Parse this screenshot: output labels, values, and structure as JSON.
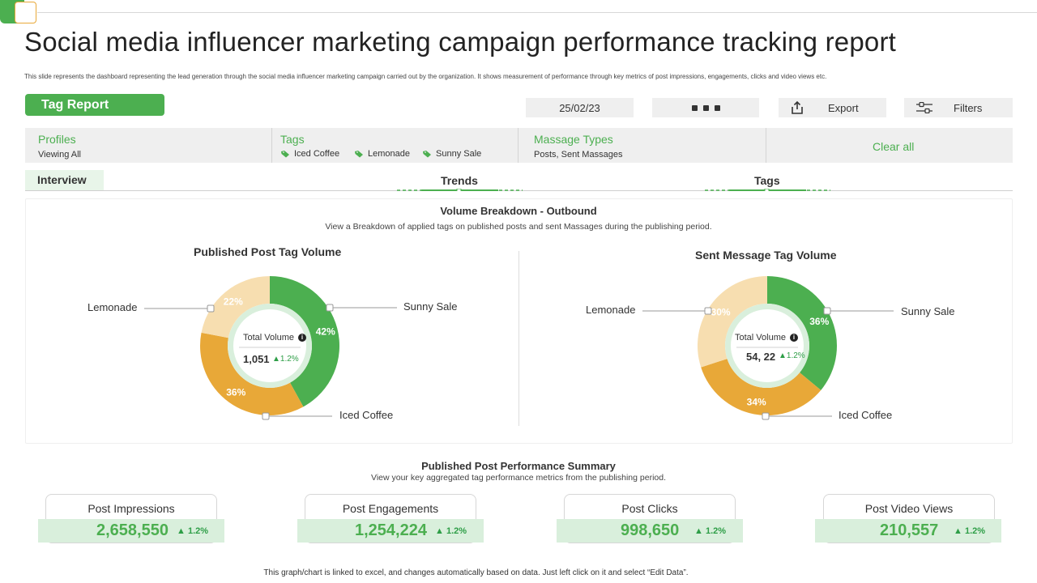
{
  "title": "Social media influencer marketing campaign performance tracking report",
  "subtitle": "This slide represents the dashboard representing the lead generation through the social media influencer marketing campaign carried out by the organization.  It shows measurement of performance through key metrics of post impressions, engagements, clicks and video views etc.",
  "toolbar": {
    "tag_report_label": "Tag Report",
    "date": "25/02/23",
    "export_label": "Export",
    "filters_label": "Filters"
  },
  "filters": {
    "profiles_label": "Profiles",
    "profiles_value": "Viewing All",
    "tags_label": "Tags",
    "tags": [
      "Iced Coffee",
      "Lemonade",
      "Sunny Sale"
    ],
    "message_types_label": "Massage Types",
    "message_types_value": "Posts, Sent Massages",
    "clear_all_label": "Clear all"
  },
  "tabs": [
    "Interview",
    "Trends",
    "Tags"
  ],
  "volume_breakdown": {
    "title": "Volume Breakdown - Outbound",
    "subtitle": "View a Breakdown of applied tags on published posts and sent Massages during the publishing period."
  },
  "colors": {
    "green": "#4caf50",
    "orange": "#e8a838",
    "beige": "#f7deb0",
    "light_green": "#d9efdc",
    "up_green": "#2e9e47"
  },
  "chart_data": [
    {
      "type": "pie",
      "title": "Published Post Tag Volume",
      "categories": [
        "Sunny Sale",
        "Iced Coffee",
        "Lemonade"
      ],
      "values": [
        42,
        36,
        22
      ],
      "labels": [
        "42%",
        "36%",
        "22%"
      ],
      "center_label": "Total Volume",
      "center_value": "1,051",
      "center_change": "1.2%"
    },
    {
      "type": "pie",
      "title": "Sent Message Tag Volume",
      "categories": [
        "Sunny Sale",
        "Iced Coffee",
        "Lemonade"
      ],
      "values": [
        36,
        34,
        30
      ],
      "labels": [
        "36%",
        "34%",
        "30%"
      ],
      "center_label": "Total Volume",
      "center_value": "54, 22",
      "center_change": "1.2%"
    }
  ],
  "performance": {
    "title": "Published Post  Performance Summary",
    "subtitle": "View your key aggregated tag performance metrics from the publishing period.",
    "kpis": [
      {
        "label": "Post Impressions",
        "value": "2,658,550",
        "change": "1.2%"
      },
      {
        "label": "Post Engagements",
        "value": "1,254,224",
        "change": "1.2%"
      },
      {
        "label": "Post Clicks",
        "value": "998,650",
        "change": "1.2%"
      },
      {
        "label": "Post Video Views",
        "value": "210,557",
        "change": "1.2%"
      }
    ]
  },
  "footer_note": "This graph/chart is linked to excel, and changes automatically based on data. Just left click on it and select “Edit Data”."
}
